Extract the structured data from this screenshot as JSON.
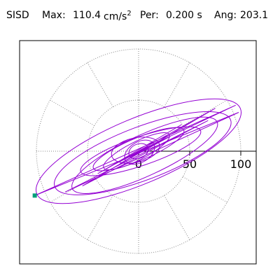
{
  "header": {
    "station": "SISD",
    "max_label": "Max:",
    "max_value": "110.4",
    "max_unit": "cm/s",
    "max_unit_exp": "2",
    "per_label": "Per:",
    "per_value": "0.200 s",
    "ang_label": "Ang:",
    "ang_value": "203.1"
  },
  "chart_data": {
    "type": "scatter",
    "title": "SISD  Max: 110.4 cm/s2  Per: 0.200 s  Ang: 203.1",
    "x_tick_labels": [
      "0",
      "50",
      "100"
    ],
    "x_ticks": [
      0,
      50,
      100
    ],
    "radial_rings": [
      50,
      100
    ],
    "radial_spokes_deg": [
      0,
      30,
      60,
      90,
      120,
      150,
      180,
      210,
      240,
      270,
      300,
      330
    ],
    "max_amplitude": 110.4,
    "angle_deg": 203.1,
    "max_point": {
      "x": -101.6,
      "y": -43.4
    },
    "colors": {
      "trace": "#9400d3",
      "max_marker": "#00a07a",
      "grid": "#888888",
      "frame": "#000000"
    },
    "series": [
      {
        "values": [
          {
            "x": 0,
            "y": 0
          },
          {
            "x": 95,
            "y": 45
          },
          {
            "x": -101.6,
            "y": -43.4
          },
          {
            "x": 98,
            "y": 38
          },
          {
            "x": -72,
            "y": -40
          },
          {
            "x": 68,
            "y": 30
          },
          {
            "x": -55,
            "y": -34
          },
          {
            "x": 75,
            "y": 42
          },
          {
            "x": -40,
            "y": -22
          },
          {
            "x": 42,
            "y": 26
          },
          {
            "x": -28,
            "y": -15
          },
          {
            "x": 30,
            "y": 14
          },
          {
            "x": -18,
            "y": -12
          },
          {
            "x": 20,
            "y": 10
          },
          {
            "x": -10,
            "y": -6
          },
          {
            "x": 8,
            "y": 4
          },
          {
            "x": 0,
            "y": 0
          }
        ]
      }
    ]
  }
}
